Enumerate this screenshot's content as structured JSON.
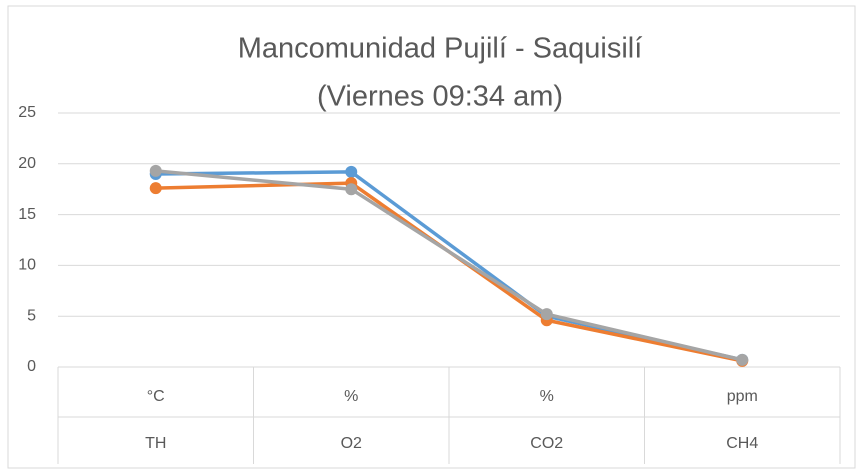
{
  "chart_data": {
    "type": "line",
    "title": [
      "Mancomunidad Pujilí - Saquisilí",
      "(Viernes 09:34 am)"
    ],
    "categories": [
      "TH",
      "O2",
      "CO2",
      "CH4"
    ],
    "category_units": [
      "°C",
      "%",
      "%",
      "ppm"
    ],
    "series": [
      {
        "color": "#5b9bd5",
        "values": [
          19.0,
          19.2,
          5.0,
          0.7
        ]
      },
      {
        "color": "#ed7d31",
        "values": [
          17.6,
          18.1,
          4.6,
          0.6
        ]
      },
      {
        "color": "#a5a5a5",
        "values": [
          19.3,
          17.5,
          5.2,
          0.7
        ]
      }
    ],
    "ylim": [
      0,
      25
    ],
    "yticks": [
      0,
      5,
      10,
      15,
      20,
      25
    ],
    "grid": true,
    "markers": true
  }
}
